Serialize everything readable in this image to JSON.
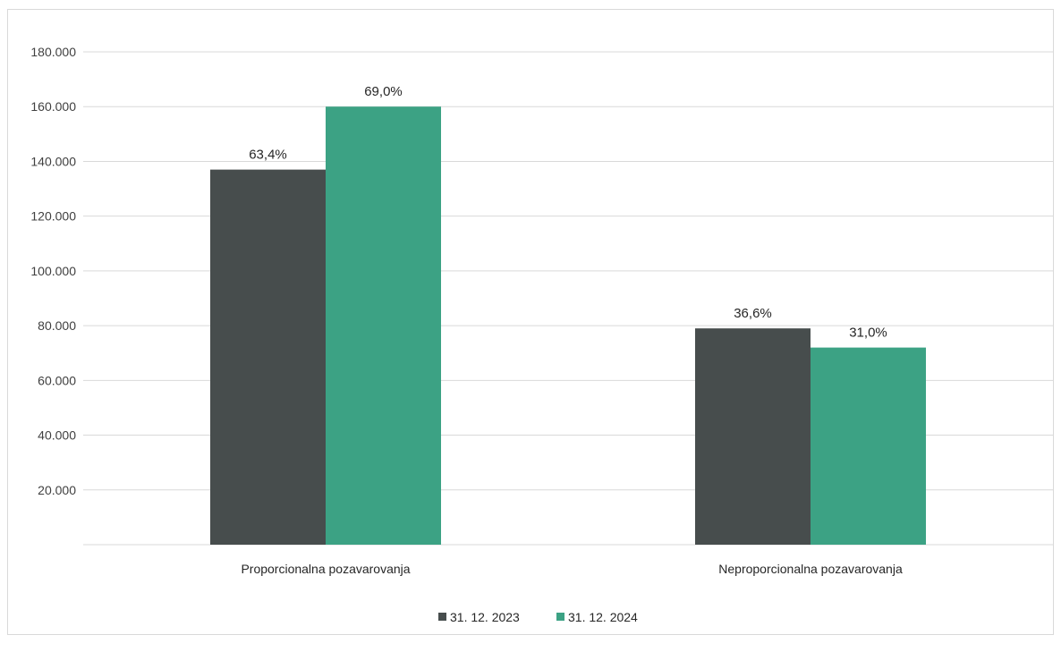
{
  "chart_data": {
    "type": "bar",
    "categories": [
      "Proporcionalna pozavarovanja",
      "Neproporcionalna pozavarovanja"
    ],
    "series": [
      {
        "name": "31. 12. 2023",
        "color": "#474d4d",
        "values": [
          137000,
          79000
        ],
        "labels": [
          "63,4%",
          "36,6%"
        ]
      },
      {
        "name": "31. 12. 2024",
        "color": "#3ca284",
        "values": [
          160000,
          72000
        ],
        "labels": [
          "69,0%",
          "31,0%"
        ]
      }
    ],
    "ylim": [
      0,
      180000
    ],
    "yticks": [
      20000,
      40000,
      60000,
      80000,
      100000,
      120000,
      140000,
      160000,
      180000
    ],
    "ytick_labels": [
      "20.000",
      "40.000",
      "60.000",
      "80.000",
      "100.000",
      "120.000",
      "140.000",
      "160.000",
      "180.000"
    ],
    "grid": true,
    "legend_position": "bottom"
  }
}
